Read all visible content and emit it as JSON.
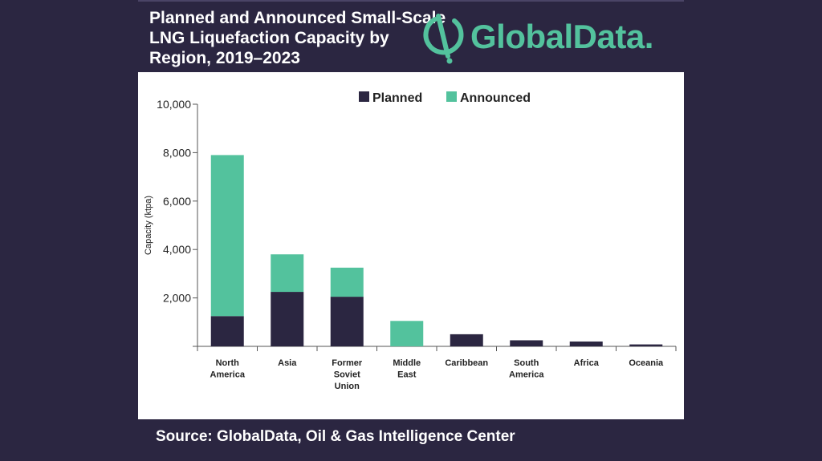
{
  "header": {
    "title_lines": [
      "Planned and Announced Small-Scale",
      "LNG Liquefaction Capacity by",
      "Region, 2019–2023"
    ],
    "logo_text": "GlobalData.",
    "logo_icon": "globaldata-logo-icon"
  },
  "footer": {
    "source": "Source:  GlobalData, Oil & Gas Intelligence Center"
  },
  "colors": {
    "background": "#2b2641",
    "planned": "#2b2641",
    "announced": "#53c29d",
    "panel": "#ffffff",
    "axis": "#555555"
  },
  "chart_data": {
    "type": "bar",
    "stacked": true,
    "title": "",
    "xlabel": "",
    "ylabel": "Capacity (ktpa)",
    "ylim": [
      0,
      10000
    ],
    "yticks": [
      0,
      2000,
      4000,
      6000,
      8000,
      10000
    ],
    "ytick_labels": [
      "",
      "2,000",
      "4,000",
      "6,000",
      "8,000",
      "10,000"
    ],
    "legend_position": "top-center",
    "categories": [
      [
        "North",
        "America"
      ],
      [
        "Asia"
      ],
      [
        "Former",
        "Soviet",
        "Union"
      ],
      [
        "Middle",
        "East"
      ],
      [
        "Caribbean"
      ],
      [
        "South",
        "America"
      ],
      [
        "Africa"
      ],
      [
        "Oceania"
      ]
    ],
    "series": [
      {
        "name": "Planned",
        "color": "#2b2641",
        "values": [
          1250,
          2250,
          2050,
          0,
          500,
          250,
          200,
          80
        ]
      },
      {
        "name": "Announced",
        "color": "#53c29d",
        "values": [
          6650,
          1550,
          1200,
          1050,
          0,
          0,
          0,
          0
        ]
      }
    ]
  }
}
